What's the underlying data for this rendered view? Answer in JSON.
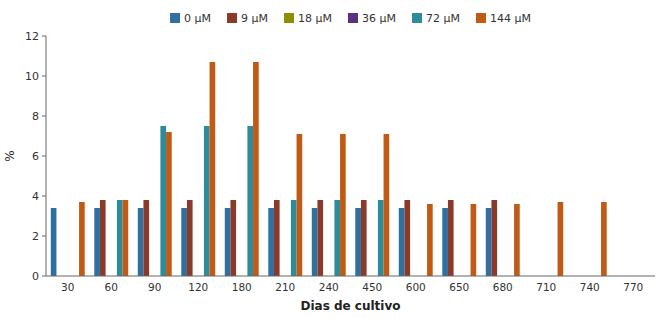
{
  "chart_data": {
    "type": "bar",
    "xlabel": "Dias de cultivo",
    "ylabel": "%",
    "categories": [
      "30",
      "60",
      "90",
      "120",
      "180",
      "210",
      "240",
      "450",
      "600",
      "650",
      "680",
      "710",
      "740",
      "770"
    ],
    "series": [
      {
        "name": "0 μM",
        "color": "#3070A0",
        "values": [
          3.4,
          3.4,
          3.4,
          3.4,
          3.4,
          3.4,
          3.4,
          3.4,
          3.4,
          3.4,
          3.4,
          0,
          0,
          0
        ]
      },
      {
        "name": "9 μM",
        "color": "#8B3A2A",
        "values": [
          0,
          3.8,
          3.8,
          3.8,
          3.8,
          3.8,
          3.8,
          3.8,
          3.8,
          3.8,
          3.8,
          0,
          0,
          0
        ]
      },
      {
        "name": "18 μM",
        "color": "#8B9000",
        "values": [
          0,
          0,
          0,
          0,
          0,
          0,
          0,
          0,
          0,
          0,
          0,
          0,
          0,
          0
        ]
      },
      {
        "name": "36 μM",
        "color": "#5A3080",
        "values": [
          0,
          0,
          0,
          0,
          0,
          0,
          0,
          0,
          0,
          0,
          0,
          0,
          0,
          0
        ]
      },
      {
        "name": "72 μM",
        "color": "#2E8B9A",
        "values": [
          0,
          3.8,
          7.5,
          7.5,
          7.5,
          3.8,
          3.8,
          3.8,
          0,
          0,
          0,
          0,
          0,
          0
        ]
      },
      {
        "name": "144 μM",
        "color": "#C05A15",
        "values": [
          3.7,
          3.8,
          7.2,
          10.7,
          10.7,
          7.1,
          7.1,
          7.1,
          3.6,
          3.6,
          3.6,
          3.7,
          3.7,
          0
        ]
      }
    ],
    "ylim": [
      0,
      12
    ],
    "yticks": [
      0,
      2,
      4,
      6,
      8,
      10,
      12
    ],
    "grid": false,
    "legend": "top"
  }
}
